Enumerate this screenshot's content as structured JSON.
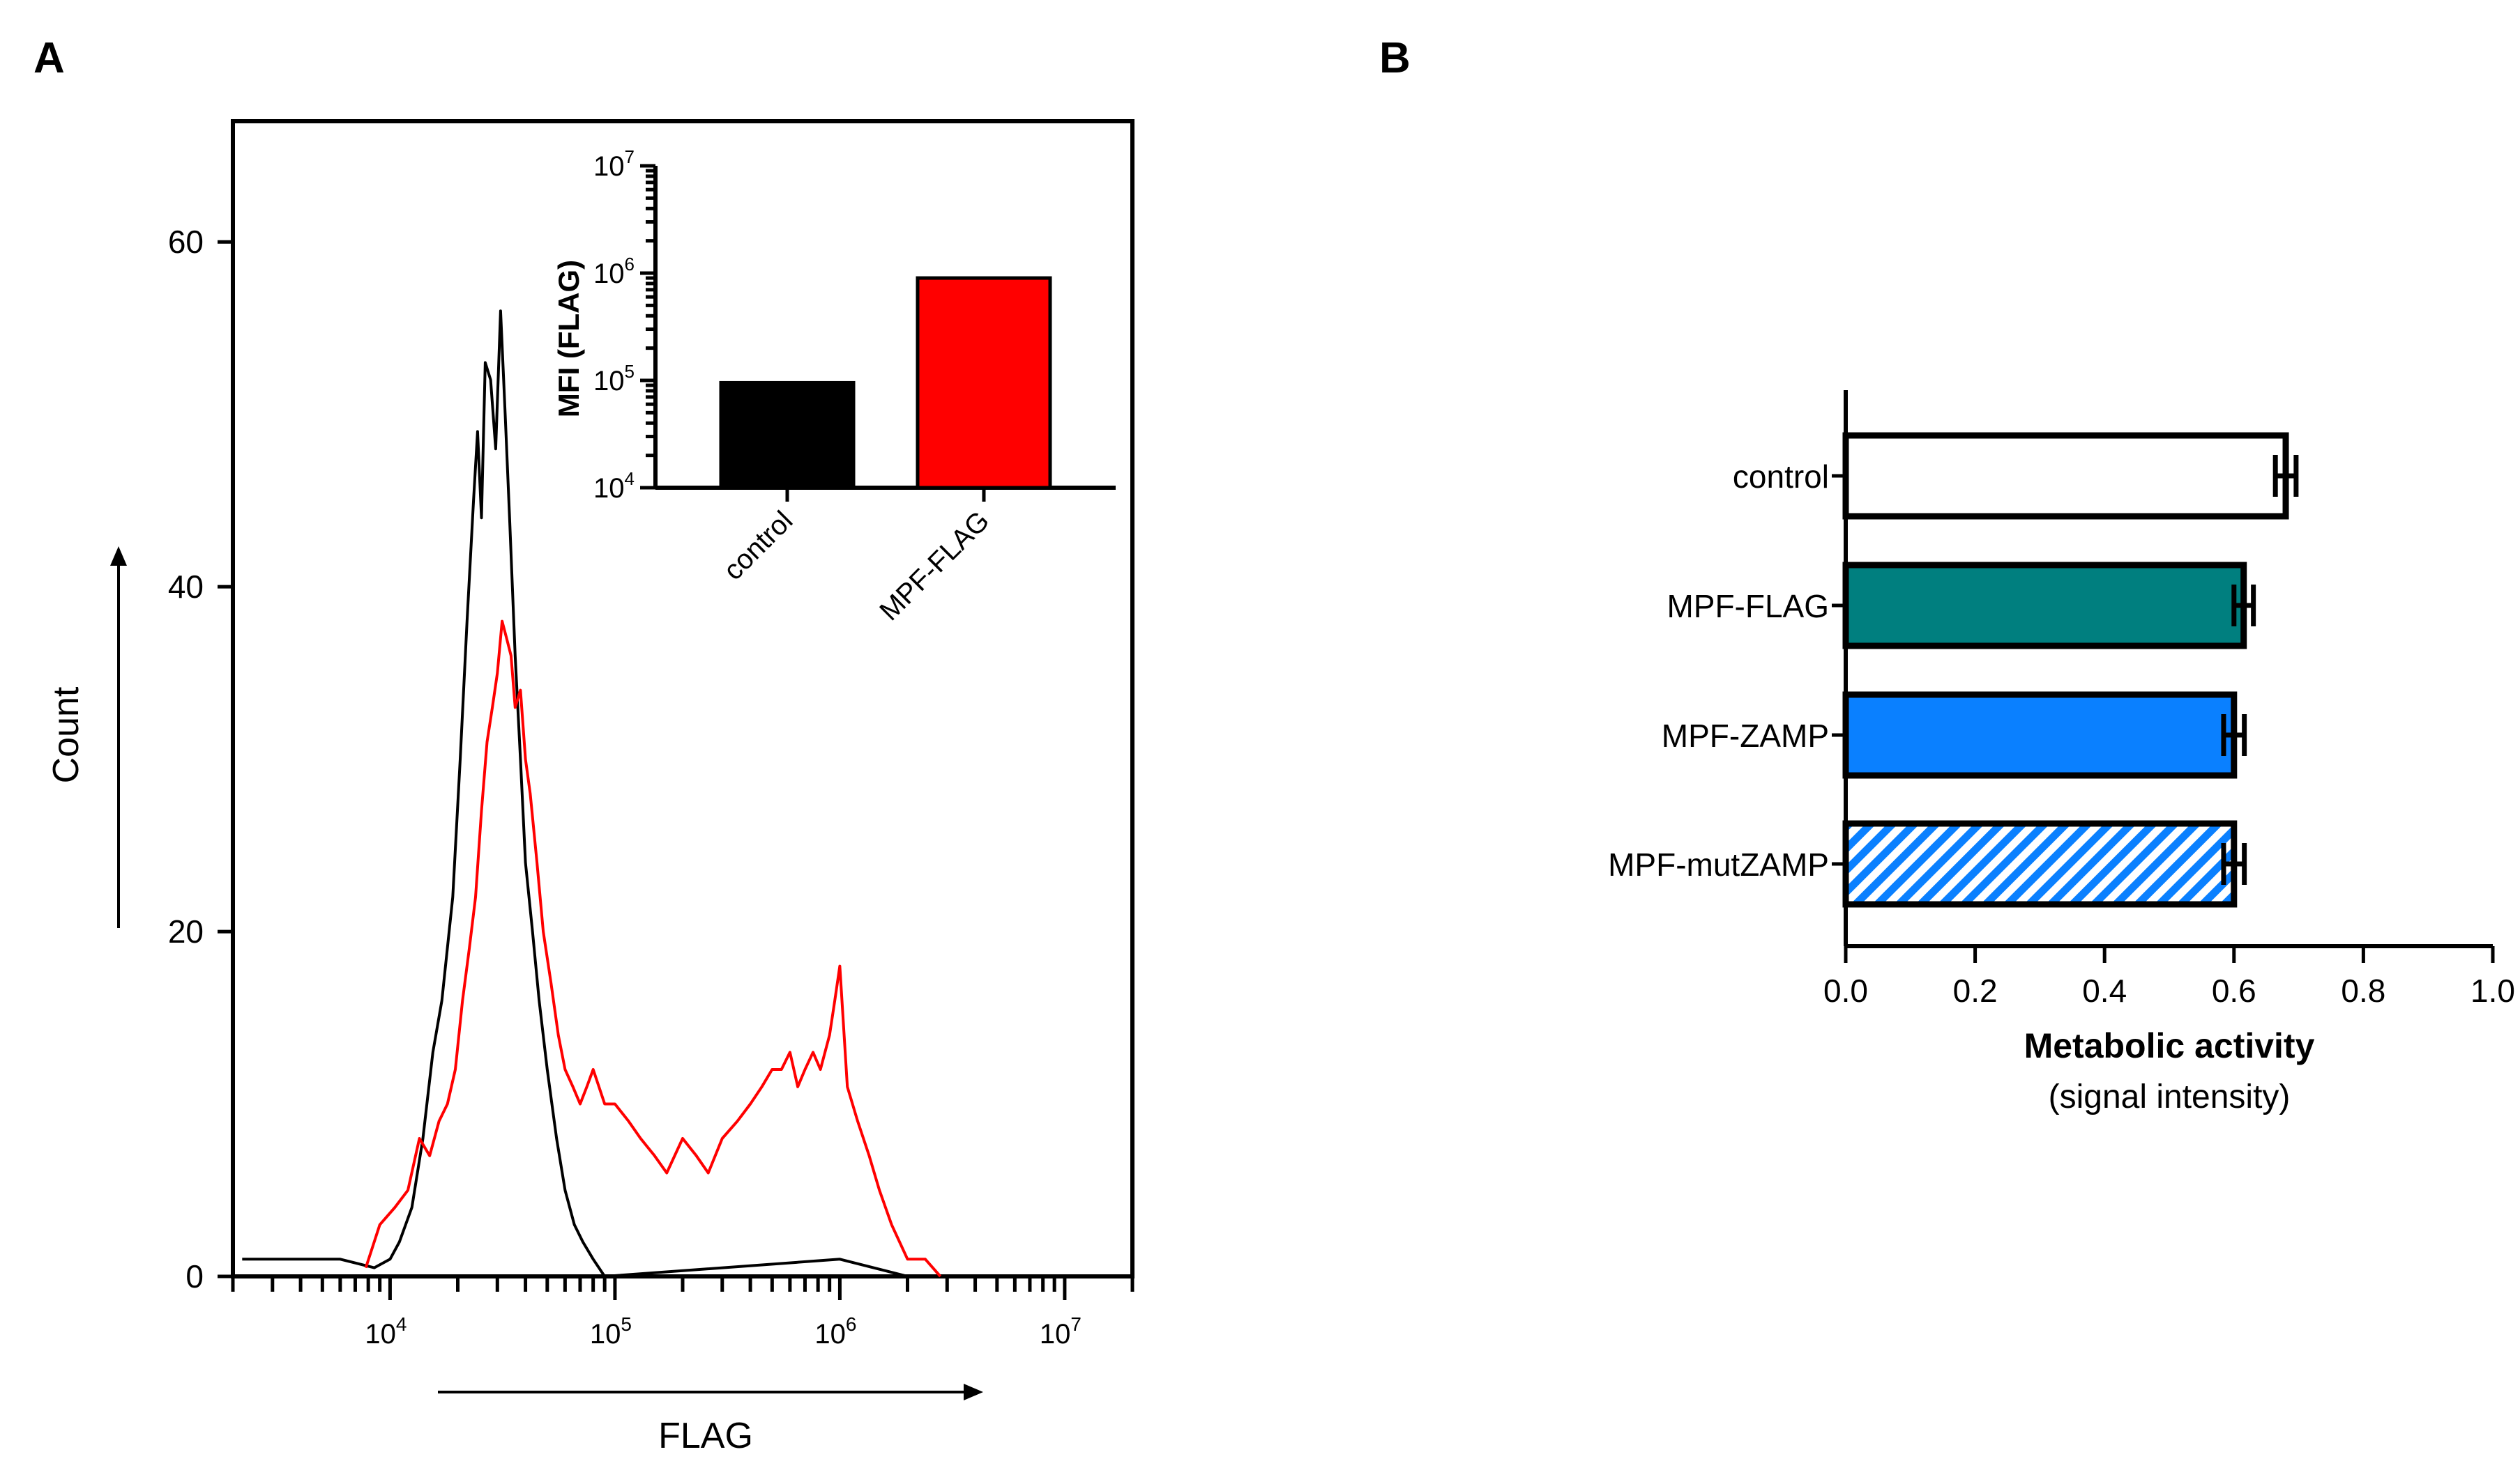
{
  "chart_data": [
    {
      "panel": "A",
      "type": "line",
      "title": "",
      "xlabel": "FLAG",
      "ylabel": "Count",
      "xscale": "log",
      "xlim": [
        2000,
        20000000
      ],
      "ylim": [
        0,
        67
      ],
      "y_ticks": [
        0,
        20,
        40,
        60
      ],
      "y_tick_labels": [
        "0",
        "20",
        "40",
        "60"
      ],
      "x_ticks": [
        10000,
        100000,
        1000000,
        10000000
      ],
      "x_tick_bases": [
        "10",
        "10",
        "10",
        "10"
      ],
      "x_tick_exponents": [
        "4",
        "5",
        "6",
        "7"
      ],
      "series": [
        {
          "name": "control",
          "color": "#000000",
          "points": [
            [
              2200,
              1
            ],
            [
              6000,
              1
            ],
            [
              8500,
              0.5
            ],
            [
              10000,
              1
            ],
            [
              11000,
              2
            ],
            [
              12500,
              4
            ],
            [
              14000,
              8
            ],
            [
              15500,
              13
            ],
            [
              17000,
              16
            ],
            [
              19000,
              22
            ],
            [
              20500,
              30
            ],
            [
              22000,
              38
            ],
            [
              23500,
              45
            ],
            [
              24500,
              49
            ],
            [
              25500,
              44
            ],
            [
              26500,
              53
            ],
            [
              28000,
              52
            ],
            [
              29500,
              48
            ],
            [
              31000,
              56
            ],
            [
              32500,
              50
            ],
            [
              34000,
              44
            ],
            [
              36000,
              36
            ],
            [
              38000,
              30
            ],
            [
              40000,
              24
            ],
            [
              43000,
              20
            ],
            [
              46000,
              16
            ],
            [
              50000,
              12
            ],
            [
              55000,
              8
            ],
            [
              60000,
              5
            ],
            [
              66000,
              3
            ],
            [
              72000,
              2
            ],
            [
              80000,
              1
            ],
            [
              90000,
              0
            ],
            [
              1000000,
              1
            ],
            [
              2000000,
              0
            ]
          ]
        },
        {
          "name": "MPF-FLAG",
          "color": "#ff0000",
          "points": [
            [
              7800,
              0.5
            ],
            [
              9000,
              3
            ],
            [
              10500,
              4
            ],
            [
              12000,
              5
            ],
            [
              13500,
              8
            ],
            [
              15000,
              7
            ],
            [
              16500,
              9
            ],
            [
              18000,
              10
            ],
            [
              19500,
              12
            ],
            [
              21000,
              16
            ],
            [
              22500,
              19
            ],
            [
              24000,
              22
            ],
            [
              25500,
              27
            ],
            [
              27000,
              31
            ],
            [
              28500,
              33
            ],
            [
              30000,
              35
            ],
            [
              31500,
              38
            ],
            [
              33000,
              37
            ],
            [
              34500,
              36
            ],
            [
              36000,
              33
            ],
            [
              38000,
              34
            ],
            [
              40000,
              30
            ],
            [
              42000,
              28
            ],
            [
              45000,
              24
            ],
            [
              48000,
              20
            ],
            [
              52000,
              17
            ],
            [
              56000,
              14
            ],
            [
              60000,
              12
            ],
            [
              65000,
              11
            ],
            [
              70000,
              10
            ],
            [
              75000,
              11
            ],
            [
              80000,
              12
            ],
            [
              90000,
              10
            ],
            [
              100000,
              10
            ],
            [
              115000,
              9
            ],
            [
              130000,
              8
            ],
            [
              150000,
              7
            ],
            [
              170000,
              6
            ],
            [
              200000,
              8
            ],
            [
              230000,
              7
            ],
            [
              260000,
              6
            ],
            [
              300000,
              8
            ],
            [
              350000,
              9
            ],
            [
              400000,
              10
            ],
            [
              450000,
              11
            ],
            [
              500000,
              12
            ],
            [
              550000,
              12
            ],
            [
              600000,
              13
            ],
            [
              650000,
              11
            ],
            [
              700000,
              12
            ],
            [
              760000,
              13
            ],
            [
              820000,
              12
            ],
            [
              900000,
              14
            ],
            [
              950000,
              16
            ],
            [
              1000000,
              18
            ],
            [
              1080000,
              11
            ],
            [
              1200000,
              9
            ],
            [
              1350000,
              7
            ],
            [
              1500000,
              5
            ],
            [
              1700000,
              3
            ],
            [
              2000000,
              1
            ],
            [
              2400000,
              1
            ],
            [
              2800000,
              0
            ]
          ]
        }
      ],
      "inset": {
        "type": "bar",
        "ylabel": "MFI (FLAG)",
        "yscale": "log",
        "ylim": [
          10000,
          10000000
        ],
        "y_ticks": [
          10000,
          100000,
          1000000,
          10000000
        ],
        "y_tick_bases": [
          "10",
          "10",
          "10",
          "10"
        ],
        "y_tick_exponents": [
          "4",
          "5",
          "6",
          "7"
        ],
        "categories": [
          "control",
          "MPF-FLAG"
        ],
        "values": [
          95000,
          900000
        ],
        "colors": [
          "#000000",
          "#ff0000"
        ]
      }
    },
    {
      "panel": "B",
      "type": "bar",
      "orientation": "horizontal",
      "title": "",
      "xlabel": "Metabolic activity",
      "xlabel_sub": "(signal intensity)",
      "ylabel": "",
      "xlim": [
        0,
        1.0
      ],
      "x_ticks": [
        0.0,
        0.2,
        0.4,
        0.6,
        0.8,
        1.0
      ],
      "x_tick_labels": [
        "0.0",
        "0.2",
        "0.4",
        "0.6",
        "0.8",
        "1.0"
      ],
      "categories": [
        "control",
        "MPF-FLAG",
        "MPF-ZAMP",
        "MPF-mutZAMP"
      ],
      "values": [
        0.68,
        0.615,
        0.6,
        0.6
      ],
      "errors": [
        0.016,
        0.015,
        0.016,
        0.016
      ],
      "colors": [
        "#ffffff",
        "#007f7f",
        "#0a80ff",
        "hatch"
      ],
      "hatch_color": "#0a80ff"
    }
  ],
  "panel_labels": [
    "A",
    "B"
  ]
}
